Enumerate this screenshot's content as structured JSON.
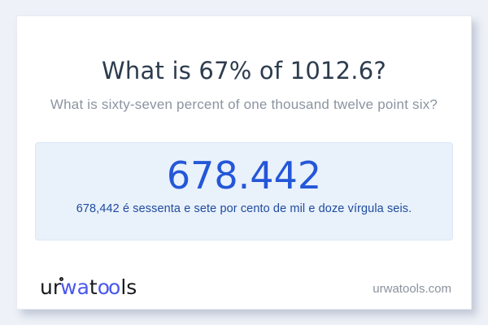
{
  "page": {
    "title": "What is 67% of 1012.6?",
    "subtitle": "What is sixty-seven percent of one thousand twelve point six?"
  },
  "result": {
    "value": "678.442",
    "sentence": "678,442 é sessenta e sete por cento de mil e doze vírgula seis."
  },
  "footer": {
    "logo": {
      "part_ur": "ur",
      "part_wa": "wa",
      "part_t": "t",
      "part_oo": "oo",
      "part_ls": "ls"
    },
    "domain": "urwatools.com"
  },
  "colors": {
    "page_background": "#eef1f7",
    "card_background": "#ffffff",
    "title_text": "#2d3c4e",
    "subtitle_text": "#8b94a1",
    "result_box_background": "#e9f1fb",
    "result_value_blue": "#2457d8",
    "result_sentence_blue": "#1e4b9e",
    "logo_blue": "#4a58ee",
    "logo_black": "#17191d",
    "domain_text": "#8b929e"
  }
}
